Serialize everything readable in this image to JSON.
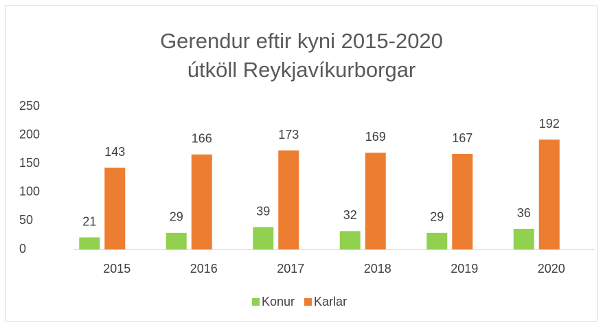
{
  "chart_data": {
    "type": "bar",
    "title": [
      "Gerendur eftir kyni 2015-2020",
      "útköll Reykjavíkurborgar"
    ],
    "categories": [
      "2015",
      "2016",
      "2017",
      "2018",
      "2019",
      "2020"
    ],
    "series": [
      {
        "name": "Konur",
        "color": "#92d050",
        "values": [
          21,
          29,
          39,
          32,
          29,
          36
        ]
      },
      {
        "name": "Karlar",
        "color": "#ed7d31",
        "values": [
          143,
          166,
          173,
          169,
          167,
          192
        ]
      }
    ],
    "ylim": [
      0,
      250
    ],
    "yticks": [
      0,
      50,
      100,
      150,
      200,
      250
    ],
    "grid": false,
    "legend": "bottom"
  }
}
